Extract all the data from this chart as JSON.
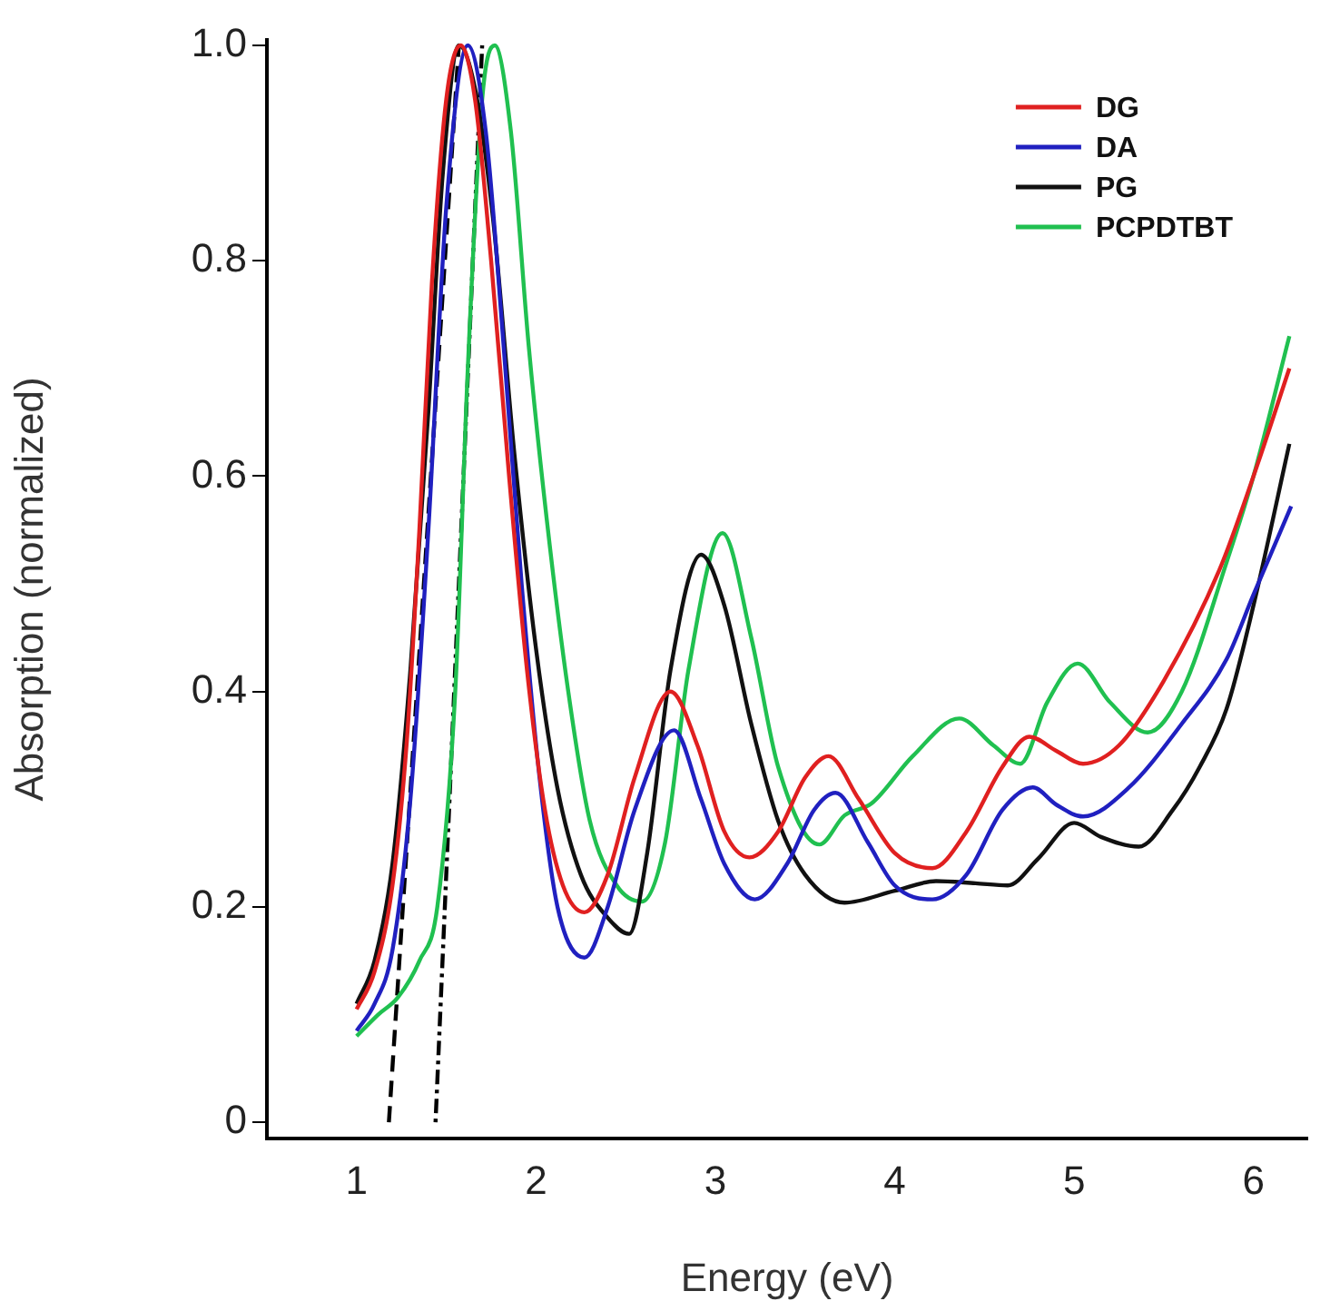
{
  "chart_data": {
    "type": "line",
    "xlabel": "Energy (eV)",
    "ylabel": "Absorption (normalized)",
    "xlim": [
      0.5,
      6.3
    ],
    "xticks": [
      1,
      2,
      3,
      4,
      5,
      6
    ],
    "ylim": [
      -0.015,
      1.005
    ],
    "yticks": [
      0,
      0.2,
      0.4,
      0.6,
      0.8,
      {
        "value": 1,
        "label": "1.0"
      }
    ],
    "grid": false,
    "legend": "top right",
    "marker": "none",
    "series": [
      {
        "name": "DG",
        "color": "#e02020",
        "x": [
          1.0,
          1.1,
          1.2,
          1.28,
          1.35,
          1.42,
          1.5,
          1.58,
          1.66,
          1.75,
          1.85,
          1.95,
          2.05,
          2.15,
          2.27,
          2.4,
          2.55,
          2.75,
          2.9,
          3.05,
          3.19,
          3.35,
          3.5,
          3.63,
          3.8,
          4.0,
          4.21,
          4.4,
          4.6,
          4.75,
          4.9,
          5.05,
          5.25,
          5.5,
          5.81,
          6.0,
          6.2
        ],
        "values": [
          0.105,
          0.14,
          0.22,
          0.354,
          0.55,
          0.78,
          0.95,
          1.0,
          0.95,
          0.8,
          0.6,
          0.42,
          0.29,
          0.22,
          0.195,
          0.23,
          0.32,
          0.4,
          0.35,
          0.27,
          0.246,
          0.27,
          0.32,
          0.34,
          0.3,
          0.25,
          0.236,
          0.27,
          0.33,
          0.358,
          0.345,
          0.333,
          0.35,
          0.41,
          0.513,
          0.6,
          0.7
        ]
      },
      {
        "name": "DA",
        "color": "#2020c0",
        "x": [
          1.0,
          1.1,
          1.2,
          1.3,
          1.4,
          1.5,
          1.62,
          1.72,
          1.82,
          1.92,
          2.02,
          2.12,
          2.27,
          2.4,
          2.55,
          2.77,
          2.92,
          3.05,
          3.22,
          3.4,
          3.55,
          3.67,
          3.85,
          4.0,
          4.21,
          4.4,
          4.6,
          4.77,
          4.9,
          5.05,
          5.3,
          5.6,
          5.85,
          6.0,
          6.21
        ],
        "values": [
          0.085,
          0.11,
          0.16,
          0.3,
          0.55,
          0.85,
          1.0,
          0.92,
          0.72,
          0.5,
          0.32,
          0.2,
          0.153,
          0.2,
          0.29,
          0.364,
          0.3,
          0.24,
          0.207,
          0.24,
          0.29,
          0.306,
          0.26,
          0.22,
          0.207,
          0.23,
          0.29,
          0.311,
          0.295,
          0.284,
          0.31,
          0.37,
          0.43,
          0.49,
          0.572
        ]
      },
      {
        "name": "PG",
        "color": "#111111",
        "x": [
          1.0,
          1.1,
          1.2,
          1.3,
          1.4,
          1.48,
          1.57,
          1.66,
          1.76,
          1.88,
          2.0,
          2.12,
          2.25,
          2.4,
          2.52,
          2.62,
          2.75,
          2.92,
          3.05,
          3.2,
          3.35,
          3.5,
          3.72,
          4.0,
          4.23,
          4.45,
          4.63,
          4.8,
          5.0,
          5.15,
          5.36,
          5.55,
          5.7,
          5.85,
          6.0,
          6.2
        ],
        "values": [
          0.11,
          0.15,
          0.24,
          0.42,
          0.66,
          0.88,
          1.0,
          0.96,
          0.84,
          0.62,
          0.44,
          0.31,
          0.23,
          0.19,
          0.175,
          0.25,
          0.42,
          0.527,
          0.48,
          0.37,
          0.28,
          0.23,
          0.204,
          0.215,
          0.224,
          0.222,
          0.22,
          0.245,
          0.278,
          0.265,
          0.256,
          0.29,
          0.33,
          0.384,
          0.48,
          0.63
        ]
      },
      {
        "name": "PCPDTBT",
        "color": "#20c050",
        "x": [
          1.0,
          1.12,
          1.23,
          1.35,
          1.45,
          1.55,
          1.62,
          1.7,
          1.77,
          1.86,
          1.96,
          2.06,
          2.18,
          2.3,
          2.45,
          2.59,
          2.72,
          2.85,
          3.04,
          3.2,
          3.35,
          3.58,
          3.72,
          3.87,
          4.1,
          4.36,
          4.55,
          4.7,
          4.85,
          5.02,
          5.2,
          5.41,
          5.6,
          5.85,
          6.0,
          6.2
        ],
        "values": [
          0.08,
          0.1,
          0.116,
          0.15,
          0.2,
          0.4,
          0.7,
          0.95,
          1.0,
          0.92,
          0.72,
          0.56,
          0.4,
          0.28,
          0.22,
          0.205,
          0.26,
          0.42,
          0.547,
          0.45,
          0.33,
          0.258,
          0.285,
          0.296,
          0.34,
          0.375,
          0.35,
          0.333,
          0.39,
          0.426,
          0.39,
          0.362,
          0.4,
          0.52,
          0.6,
          0.73
        ]
      },
      {
        "color": "#000000",
        "line_style": "dashed",
        "x": [
          1.18,
          1.57
        ],
        "values": [
          0,
          1.0
        ]
      },
      {
        "color": "#000000",
        "line_style": "dotted",
        "x": [
          1.44,
          1.7
        ],
        "values": [
          0,
          1.0
        ]
      }
    ]
  }
}
